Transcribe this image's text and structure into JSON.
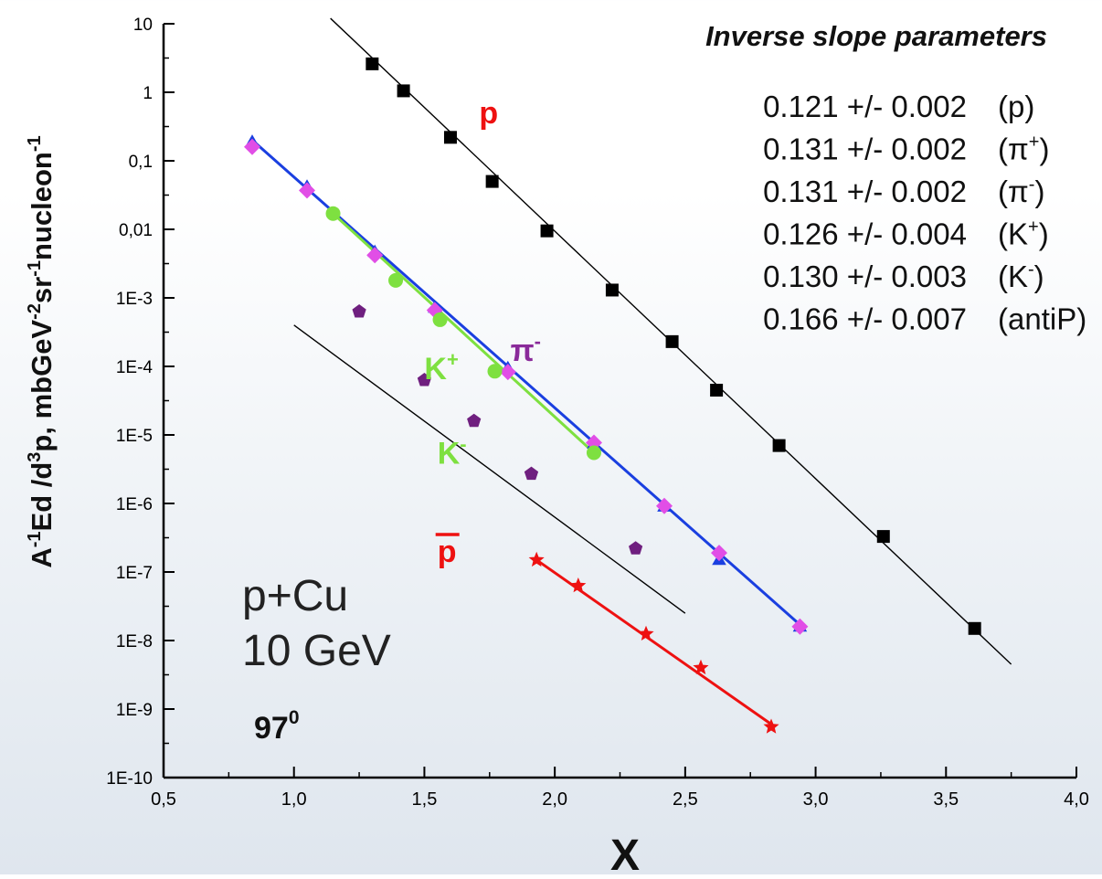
{
  "chart_data": {
    "type": "scatter",
    "title": "",
    "xlabel": "X",
    "ylabel": {
      "parts": [
        "A",
        "-1",
        "Ed  /d",
        "3",
        "p, mbGeV",
        "-2",
        "sr",
        "-1",
        "nucleon",
        "-1"
      ]
    },
    "xlim": [
      0.5,
      4.0
    ],
    "ylim": [
      1e-10,
      10
    ],
    "yscale": "log",
    "grid": false,
    "x_ticks": [
      {
        "value": 0.5,
        "label": "0,5"
      },
      {
        "value": 1.0,
        "label": "1,0"
      },
      {
        "value": 1.5,
        "label": "1,5"
      },
      {
        "value": 2.0,
        "label": "2,0"
      },
      {
        "value": 2.5,
        "label": "2,5"
      },
      {
        "value": 3.0,
        "label": "3,0"
      },
      {
        "value": 3.5,
        "label": "3,5"
      },
      {
        "value": 4.0,
        "label": "4,0"
      }
    ],
    "y_ticks": [
      {
        "value": 10,
        "label": "10"
      },
      {
        "value": 1,
        "label": "1"
      },
      {
        "value": 0.1,
        "label": "0,1"
      },
      {
        "value": 0.01,
        "label": "0,01"
      },
      {
        "value": 0.001,
        "label": "1E-3"
      },
      {
        "value": 0.0001,
        "label": "1E-4"
      },
      {
        "value": 1e-05,
        "label": "1E-5"
      },
      {
        "value": 1e-06,
        "label": "1E-6"
      },
      {
        "value": 1e-07,
        "label": "1E-7"
      },
      {
        "value": 1e-08,
        "label": "1E-8"
      },
      {
        "value": 1e-09,
        "label": "1E-9"
      },
      {
        "value": 1e-10,
        "label": "1E-10"
      }
    ],
    "series": [
      {
        "key": "p",
        "color": "#000000",
        "marker": "square",
        "points": [
          [
            1.3,
            2.6
          ],
          [
            1.42,
            1.05
          ],
          [
            1.6,
            0.22
          ],
          [
            1.76,
            0.05
          ],
          [
            1.97,
            0.0095
          ],
          [
            2.22,
            0.0013
          ],
          [
            2.45,
            0.00023
          ],
          [
            2.62,
            4.5e-05
          ],
          [
            2.86,
            7e-06
          ],
          [
            3.26,
            3.3e-07
          ],
          [
            3.61,
            1.5e-08
          ]
        ],
        "fit": {
          "color": "#000000",
          "width": 1.4,
          "from": [
            1.14,
            12
          ],
          "to": [
            3.75,
            4.5e-09
          ]
        }
      },
      {
        "key": "pi_plus",
        "color": "#1a3fe0",
        "marker": "triangle",
        "points": [
          [
            0.84,
            0.19
          ],
          [
            1.05,
            0.042
          ],
          [
            1.31,
            0.0047
          ],
          [
            1.54,
            0.00072
          ],
          [
            1.82,
            9.5e-05
          ],
          [
            2.15,
            7.5e-06
          ],
          [
            2.42,
            9e-07
          ],
          [
            2.63,
            1.5e-07
          ],
          [
            2.94,
            1.6e-08
          ]
        ],
        "fit": {
          "color": "#1a3fe0",
          "width": 3,
          "from": [
            0.84,
            0.2
          ],
          "to": [
            2.94,
            1.7e-08
          ]
        }
      },
      {
        "key": "pi_minus",
        "color": "#e14ee6",
        "marker": "diamond",
        "points": [
          [
            0.84,
            0.16
          ],
          [
            1.05,
            0.037
          ],
          [
            1.31,
            0.0042
          ],
          [
            1.54,
            0.00066
          ],
          [
            1.82,
            8.3e-05
          ],
          [
            2.15,
            7.7e-06
          ],
          [
            2.42,
            9.2e-07
          ],
          [
            2.63,
            1.9e-07
          ],
          [
            2.94,
            1.6e-08
          ]
        ]
      },
      {
        "key": "k_plus",
        "color": "#7ee040",
        "marker": "circle",
        "points": [
          [
            1.15,
            0.017
          ],
          [
            1.39,
            0.0018
          ],
          [
            1.56,
            0.00048
          ],
          [
            1.77,
            8.5e-05
          ],
          [
            2.15,
            5.5e-06
          ]
        ],
        "fit": {
          "color": "#7ee040",
          "width": 3,
          "from": [
            1.15,
            0.017
          ],
          "to": [
            2.15,
            5.5e-06
          ]
        }
      },
      {
        "key": "k_minus",
        "color": "#6f1f7f",
        "marker": "pentagon",
        "points": [
          [
            1.25,
            0.00063
          ],
          [
            1.5,
            6.3e-05
          ],
          [
            1.69,
            1.6e-05
          ],
          [
            1.91,
            2.7e-06
          ],
          [
            2.31,
            2.2e-07
          ]
        ],
        "fit": {
          "color": "#000000",
          "width": 1.4,
          "from": [
            1.0,
            0.0004
          ],
          "to": [
            2.5,
            2.5e-08
          ]
        }
      },
      {
        "key": "antip",
        "color": "#ee1111",
        "marker": "star",
        "points": [
          [
            1.93,
            1.5e-07
          ],
          [
            2.09,
            6.3e-08
          ],
          [
            2.35,
            1.25e-08
          ],
          [
            2.56,
            4e-09
          ],
          [
            2.83,
            5.5e-10
          ]
        ],
        "fit": {
          "color": "#ee1111",
          "width": 3,
          "from": [
            1.93,
            1.5e-07
          ],
          "to": [
            2.83,
            6e-10
          ]
        }
      }
    ],
    "curve_labels": [
      {
        "base": "p",
        "sup": "",
        "bar": false,
        "color": "#ee1111",
        "at": [
          1.71,
          0.35
        ]
      },
      {
        "base": "π",
        "sup": "-",
        "bar": false,
        "color": "#8a2a9a",
        "at": [
          1.83,
          0.00012
        ]
      },
      {
        "base": "K",
        "sup": "+",
        "bar": false,
        "color": "#7ee040",
        "at": [
          1.5,
          6.5e-05
        ]
      },
      {
        "base": "K",
        "sup": "-",
        "bar": false,
        "color": "#7ee040",
        "at": [
          1.55,
          3.8e-06
        ]
      },
      {
        "base": "p",
        "sup": "",
        "bar": true,
        "color": "#ee1111",
        "at": [
          1.55,
          1.4e-07
        ]
      }
    ],
    "annotation": {
      "heading": "Inverse slope parameters",
      "rows": [
        {
          "value": "0.121 +/- 0.002",
          "particle": "(p)",
          "base": "(p)",
          "sup": ""
        },
        {
          "value": "0.131 +/- 0.002",
          "particle": "(π+)",
          "base": "(π",
          "sup": "+"
        },
        {
          "value": "0.131 +/- 0.002",
          "particle": "(π-)",
          "base": "(π",
          "sup": "-"
        },
        {
          "value": "0.126 +/- 0.004",
          "particle": "(K+)",
          "base": "(K",
          "sup": "+"
        },
        {
          "value": "0.130 +/- 0.003",
          "particle": "(K-)",
          "base": "(K",
          "sup": "-"
        },
        {
          "value": "0.166 +/- 0.007",
          "particle": "(antiP)",
          "base": "(antiP)",
          "sup": ""
        }
      ]
    },
    "reaction": {
      "line1": "p+Cu",
      "line2": "10 GeV",
      "angle_base": "97",
      "angle_sup": "0"
    }
  }
}
